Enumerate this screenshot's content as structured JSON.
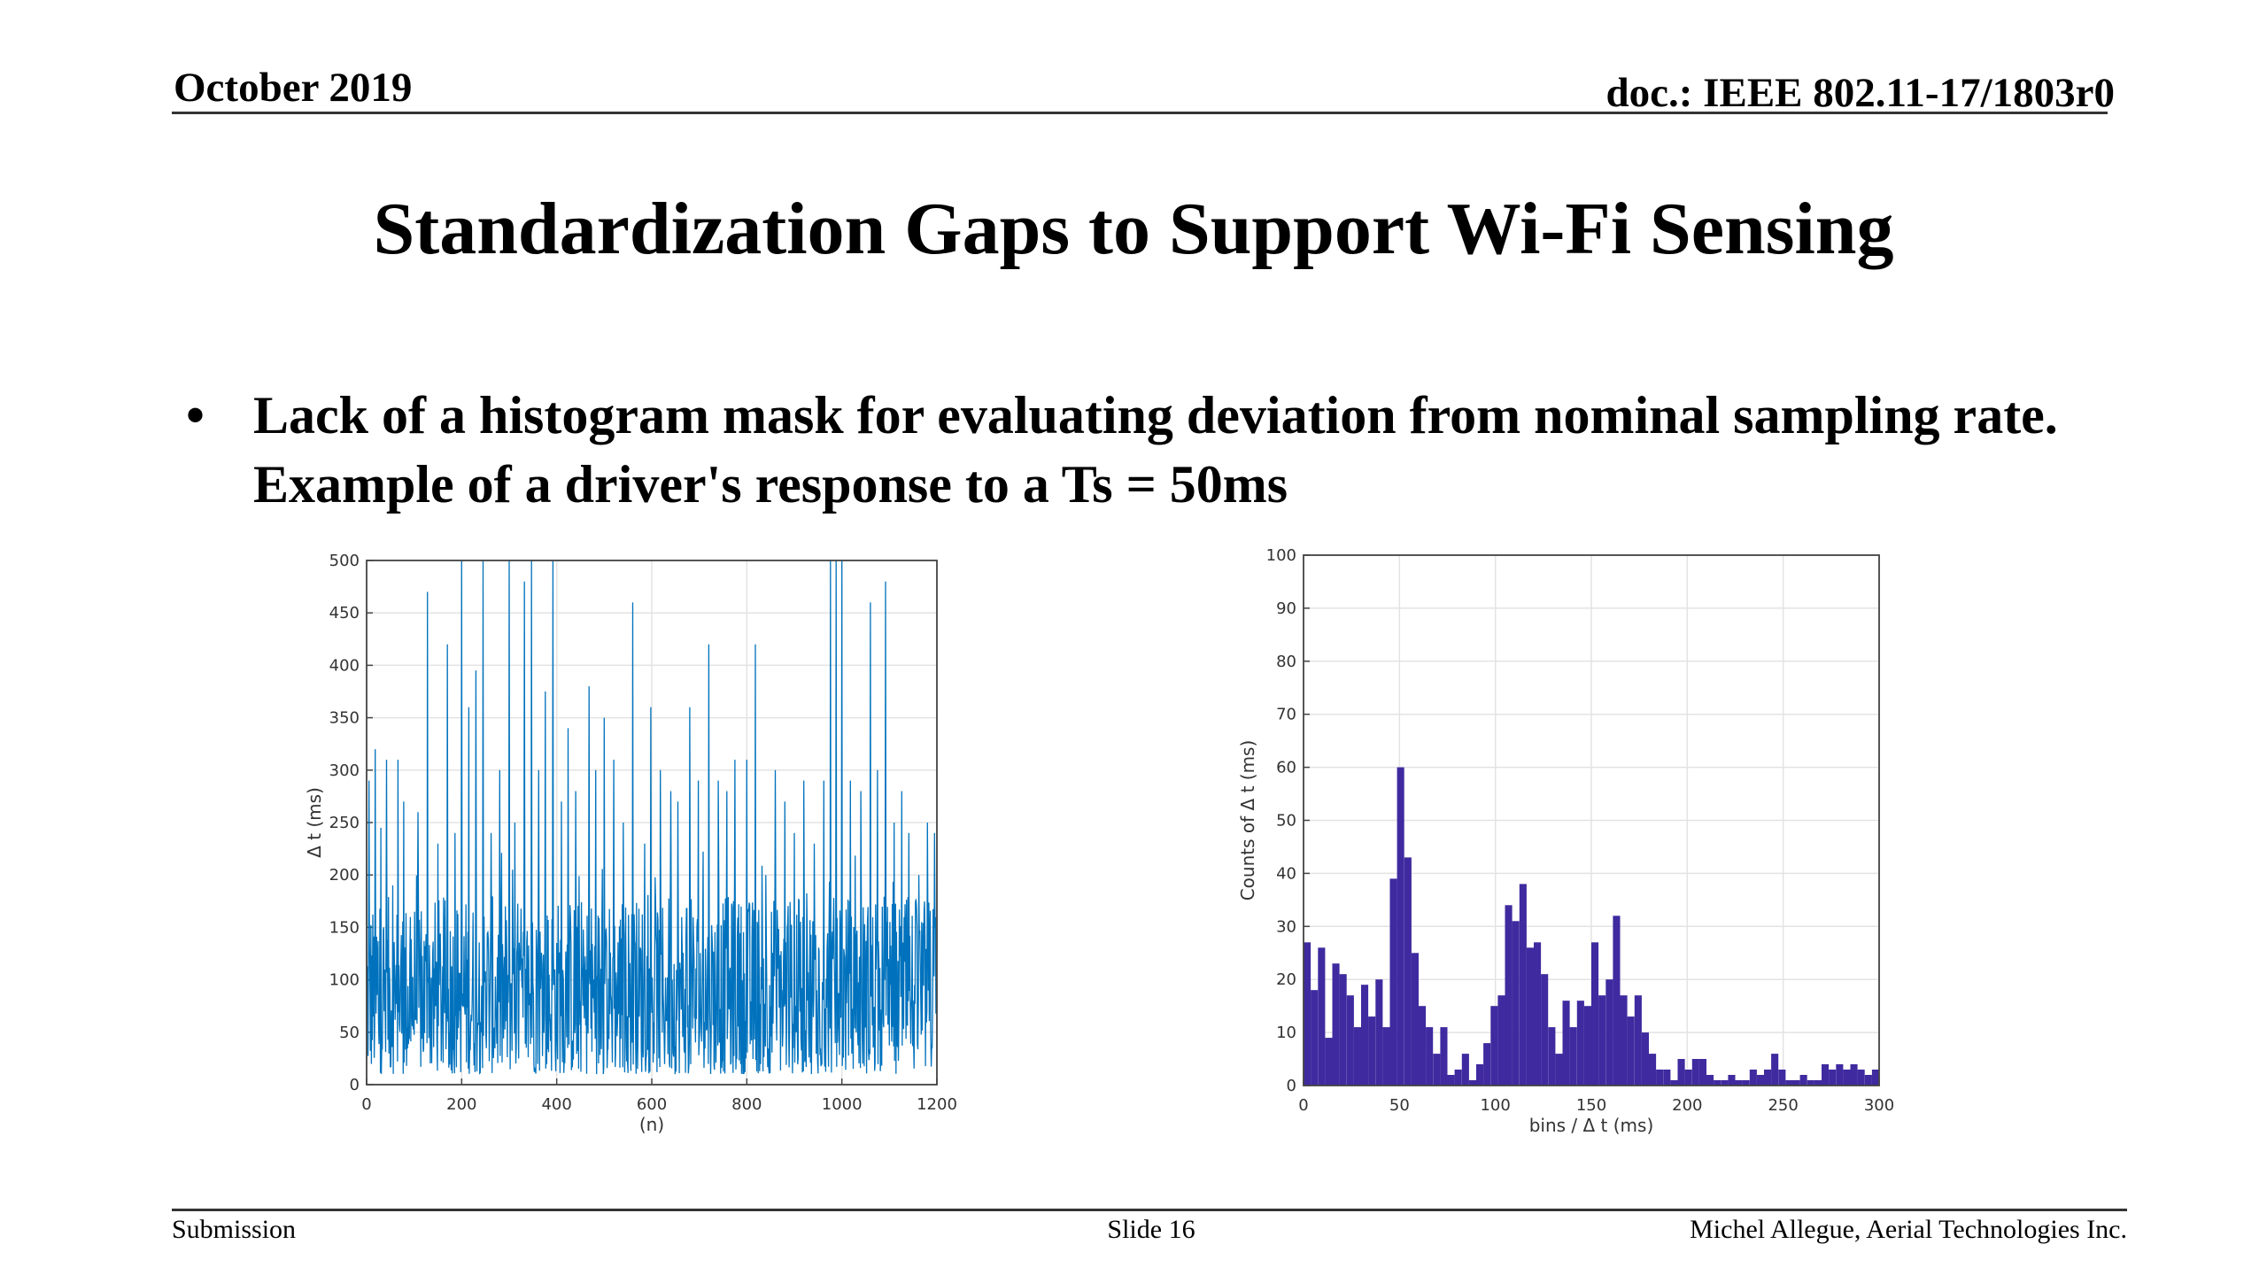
{
  "header": {
    "date": "October 2019",
    "doc": "doc.: IEEE 802.11-17/1803r0"
  },
  "title": "Standardization Gaps to Support Wi-Fi Sensing",
  "bullet": {
    "symbol": "•",
    "text": "Lack of a histogram mask for evaluating deviation from nominal sampling rate. Example of a driver's response to a Ts = 50ms"
  },
  "footer": {
    "left": "Submission",
    "center": "Slide 16",
    "right": "Michel Allegue, Aerial Technologies Inc."
  },
  "chart_data": [
    {
      "type": "line",
      "title": "",
      "xlabel": "(n)",
      "ylabel": "Δ t (ms)",
      "xlim": [
        0,
        1200
      ],
      "ylim": [
        0,
        500
      ],
      "xticks": [
        "0",
        "200",
        "400",
        "600",
        "800",
        "1000",
        "1200"
      ],
      "yticks": [
        "0",
        "50",
        "100",
        "150",
        "200",
        "250",
        "300",
        "350",
        "400",
        "450",
        "500"
      ],
      "grid": true,
      "color": "#0072BD",
      "n_points": 1200,
      "typical_range": [
        10,
        180
      ],
      "spikes": [
        [
          5,
          290
        ],
        [
          18,
          320
        ],
        [
          30,
          245
        ],
        [
          42,
          310
        ],
        [
          55,
          190
        ],
        [
          66,
          310
        ],
        [
          78,
          270
        ],
        [
          92,
          160
        ],
        [
          108,
          260
        ],
        [
          128,
          470
        ],
        [
          150,
          230
        ],
        [
          170,
          420
        ],
        [
          186,
          240
        ],
        [
          200,
          500
        ],
        [
          215,
          360
        ],
        [
          230,
          395
        ],
        [
          245,
          500
        ],
        [
          262,
          240
        ],
        [
          280,
          300
        ],
        [
          300,
          500
        ],
        [
          312,
          250
        ],
        [
          332,
          480
        ],
        [
          347,
          500
        ],
        [
          362,
          300
        ],
        [
          376,
          375
        ],
        [
          392,
          500
        ],
        [
          410,
          270
        ],
        [
          424,
          340
        ],
        [
          440,
          280
        ],
        [
          468,
          380
        ],
        [
          482,
          300
        ],
        [
          500,
          350
        ],
        [
          520,
          310
        ],
        [
          540,
          250
        ],
        [
          560,
          460
        ],
        [
          585,
          230
        ],
        [
          598,
          360
        ],
        [
          618,
          300
        ],
        [
          640,
          280
        ],
        [
          655,
          270
        ],
        [
          680,
          360
        ],
        [
          698,
          290
        ],
        [
          720,
          420
        ],
        [
          740,
          290
        ],
        [
          758,
          280
        ],
        [
          775,
          310
        ],
        [
          800,
          310
        ],
        [
          818,
          420
        ],
        [
          840,
          200
        ],
        [
          860,
          300
        ],
        [
          880,
          270
        ],
        [
          900,
          240
        ],
        [
          920,
          290
        ],
        [
          942,
          230
        ],
        [
          962,
          290
        ],
        [
          976,
          500
        ],
        [
          988,
          500
        ],
        [
          1000,
          500
        ],
        [
          1018,
          290
        ],
        [
          1040,
          280
        ],
        [
          1060,
          460
        ],
        [
          1075,
          300
        ],
        [
          1092,
          480
        ],
        [
          1110,
          250
        ],
        [
          1126,
          280
        ],
        [
          1141,
          240
        ],
        [
          1162,
          200
        ],
        [
          1180,
          250
        ],
        [
          1195,
          240
        ]
      ]
    },
    {
      "type": "bar",
      "title": "",
      "xlabel": "bins / Δ t (ms)",
      "ylabel": "Counts of Δ t (ms)",
      "xlim": [
        0,
        300
      ],
      "ylim": [
        0,
        100
      ],
      "xticks": [
        "0",
        "50",
        "100",
        "150",
        "200",
        "250",
        "300"
      ],
      "yticks": [
        "0",
        "10",
        "20",
        "30",
        "40",
        "50",
        "60",
        "70",
        "80",
        "90",
        "100"
      ],
      "grid": true,
      "color": "#3F2A9F",
      "bin_width": 3.75,
      "bin_starts": [
        0,
        3.75,
        7.5,
        11.25,
        15,
        18.75,
        22.5,
        26.25,
        30,
        33.75,
        37.5,
        41.25,
        45,
        48.75,
        52.5,
        56.25,
        60,
        63.75,
        67.5,
        71.25,
        75,
        78.75,
        82.5,
        86.25,
        90,
        93.75,
        97.5,
        101.25,
        105,
        108.75,
        112.5,
        116.25,
        120,
        123.75,
        127.5,
        131.25,
        135,
        138.75,
        142.5,
        146.25,
        150,
        153.75,
        157.5,
        161.25,
        165,
        168.75,
        172.5,
        176.25,
        180,
        183.75,
        187.5,
        191.25,
        195,
        198.75,
        202.5,
        206.25,
        210,
        213.75,
        217.5,
        221.25,
        225,
        228.75,
        232.5,
        236.25,
        240,
        243.75,
        247.5,
        251.25,
        255,
        258.75,
        262.5,
        266.25,
        270,
        273.75,
        277.5,
        281.25,
        285,
        288.75,
        292.5,
        296.25
      ],
      "counts": [
        27,
        18,
        26,
        9,
        23,
        21,
        17,
        11,
        19,
        13,
        20,
        11,
        39,
        60,
        43,
        25,
        15,
        11,
        6,
        11,
        2,
        3,
        6,
        1,
        4,
        8,
        15,
        17,
        34,
        31,
        38,
        26,
        27,
        21,
        11,
        6,
        16,
        11,
        16,
        15,
        27,
        17,
        20,
        32,
        17,
        13,
        17,
        10,
        6,
        3,
        3,
        1,
        5,
        3,
        5,
        5,
        2,
        1,
        1,
        2,
        1,
        1,
        3,
        2,
        3,
        6,
        3,
        1,
        1,
        2,
        1,
        1,
        4,
        3,
        4,
        3,
        4,
        3,
        2,
        3
      ]
    }
  ]
}
